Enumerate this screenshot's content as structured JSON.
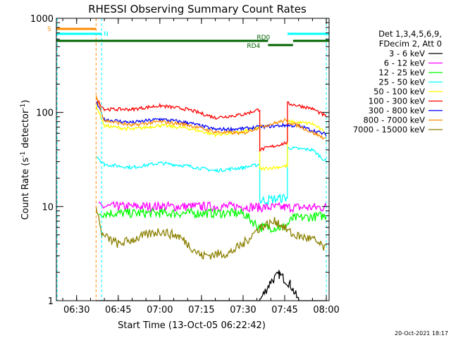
{
  "chart_data": {
    "type": "line",
    "title": "RHESSI Observing Summary Count Rates",
    "xlabel": "Start Time (13-Oct-05 06:22:42)",
    "ylabel_main": "Count Rate (s",
    "ylabel_exp1": "-1",
    "ylabel_mid": " detector",
    "ylabel_exp2": "-1",
    "ylabel_end": ")",
    "x_range": [
      "06:22:42",
      "08:01:00"
    ],
    "y_scale": "log",
    "ylim": [
      1,
      1000
    ],
    "x_ticks": [
      "06:30",
      "06:45",
      "07:00",
      "07:15",
      "07:30",
      "07:45",
      "08:00"
    ],
    "y_ticks": [
      "1",
      "10",
      "100",
      "1000"
    ],
    "legend_header": [
      "Det 1,3,4,5,6,9,",
      "FDecim 2, Att 0"
    ],
    "legend_position": "right",
    "footer": "20-Oct-2021 18:17",
    "series": [
      {
        "name": "3 - 6 keV",
        "color": "#000000",
        "points": [
          [
            "06:37",
            1.0
          ],
          [
            "06:45",
            1.0
          ],
          [
            "07:00",
            1.0
          ],
          [
            "07:15",
            1.0
          ],
          [
            "07:30",
            1.0
          ],
          [
            "07:36",
            1.0
          ],
          [
            "07:40",
            1.6
          ],
          [
            "07:43",
            1.9
          ],
          [
            "07:47",
            1.5
          ],
          [
            "07:50",
            1.0
          ],
          [
            "08:00",
            1.0
          ]
        ]
      },
      {
        "name": "6 - 12 keV",
        "color": "#ff00ff",
        "points": [
          [
            "06:38",
            10.0
          ],
          [
            "06:45",
            10.0
          ],
          [
            "07:00",
            10.0
          ],
          [
            "07:15",
            10.0
          ],
          [
            "07:30",
            10.0
          ],
          [
            "07:36",
            9.8
          ],
          [
            "07:45",
            9.8
          ],
          [
            "08:00",
            9.8
          ]
        ]
      },
      {
        "name": "12 - 25 keV",
        "color": "#00ff00",
        "points": [
          [
            "06:38",
            8.5
          ],
          [
            "06:45",
            8.5
          ],
          [
            "07:00",
            8.5
          ],
          [
            "07:15",
            8.5
          ],
          [
            "07:30",
            8.5
          ],
          [
            "07:36",
            6.0
          ],
          [
            "07:45",
            6.0
          ],
          [
            "07:48",
            7.5
          ],
          [
            "08:00",
            8.0
          ]
        ]
      },
      {
        "name": "25 - 50 keV",
        "color": "#00ffff",
        "points": [
          [
            "06:37",
            35.0
          ],
          [
            "06:40",
            28.0
          ],
          [
            "06:50",
            26.0
          ],
          [
            "07:00",
            29.0
          ],
          [
            "07:10",
            27.0
          ],
          [
            "07:20",
            24.0
          ],
          [
            "07:30",
            26.0
          ],
          [
            "07:36",
            28.0
          ],
          [
            "07:36",
            11.5
          ],
          [
            "07:46",
            12.5
          ],
          [
            "07:46",
            42.0
          ],
          [
            "07:55",
            40.0
          ],
          [
            "08:00",
            30.0
          ]
        ]
      },
      {
        "name": "50 - 100 keV",
        "color": "#ffff00",
        "points": [
          [
            "06:37",
            120.0
          ],
          [
            "06:40",
            72.0
          ],
          [
            "06:50",
            66.0
          ],
          [
            "07:00",
            73.0
          ],
          [
            "07:10",
            68.0
          ],
          [
            "07:20",
            58.0
          ],
          [
            "07:30",
            62.0
          ],
          [
            "07:36",
            70.0
          ],
          [
            "07:36",
            25.0
          ],
          [
            "07:46",
            27.0
          ],
          [
            "07:46",
            80.0
          ],
          [
            "07:55",
            76.0
          ],
          [
            "08:00",
            60.0
          ]
        ]
      },
      {
        "name": "100 - 300 keV",
        "color": "#ff0000",
        "points": [
          [
            "06:37",
            140.0
          ],
          [
            "06:40",
            108.0
          ],
          [
            "06:50",
            108.0
          ],
          [
            "07:00",
            118.0
          ],
          [
            "07:10",
            108.0
          ],
          [
            "07:20",
            88.0
          ],
          [
            "07:30",
            95.0
          ],
          [
            "07:36",
            108.0
          ],
          [
            "07:36",
            40.0
          ],
          [
            "07:46",
            48.0
          ],
          [
            "07:46",
            125.0
          ],
          [
            "07:55",
            110.0
          ],
          [
            "08:00",
            90.0
          ]
        ]
      },
      {
        "name": "300 - 800 keV",
        "color": "#0000ff",
        "points": [
          [
            "06:37",
            130.0
          ],
          [
            "06:40",
            84.0
          ],
          [
            "06:50",
            78.0
          ],
          [
            "07:00",
            85.0
          ],
          [
            "07:10",
            78.0
          ],
          [
            "07:20",
            66.0
          ],
          [
            "07:30",
            67.0
          ],
          [
            "07:36",
            70.0
          ],
          [
            "07:45",
            73.0
          ],
          [
            "07:50",
            72.0
          ],
          [
            "08:00",
            58.0
          ]
        ]
      },
      {
        "name": "800 - 7000 keV",
        "color": "#ff8c00",
        "points": [
          [
            "06:37",
            150.0
          ],
          [
            "06:40",
            82.0
          ],
          [
            "06:50",
            73.0
          ],
          [
            "07:00",
            80.0
          ],
          [
            "07:10",
            74.0
          ],
          [
            "07:20",
            62.0
          ],
          [
            "07:30",
            60.0
          ],
          [
            "07:36",
            70.0
          ],
          [
            "07:45",
            82.0
          ],
          [
            "07:50",
            72.0
          ],
          [
            "08:00",
            52.0
          ]
        ]
      },
      {
        "name": "7000 - 15000 keV",
        "color": "#8b8000",
        "points": [
          [
            "06:37",
            11.0
          ],
          [
            "06:39",
            5.0
          ],
          [
            "06:45",
            4.0
          ],
          [
            "07:00",
            5.5
          ],
          [
            "07:07",
            4.8
          ],
          [
            "07:15",
            3.0
          ],
          [
            "07:25",
            3.2
          ],
          [
            "07:30",
            4.0
          ],
          [
            "07:36",
            6.0
          ],
          [
            "07:42",
            7.0
          ],
          [
            "07:48",
            5.0
          ],
          [
            "07:55",
            4.5
          ],
          [
            "08:00",
            3.5
          ]
        ]
      }
    ],
    "state_bars": [
      {
        "label": "S",
        "color": "#ff8c00",
        "from": "06:22:42",
        "to": "06:37"
      },
      {
        "label": "N",
        "color": "#00ffff",
        "from": "06:22:42",
        "to": "06:39"
      },
      {
        "label": "N",
        "color": "#00ffff",
        "from": "07:46",
        "to": "08:01"
      },
      {
        "label": "RD0",
        "color": "#006400",
        "from": "06:22:42",
        "to": "07:39"
      },
      {
        "label": "RD0",
        "color": "#006400",
        "from": "07:48",
        "to": "08:01"
      },
      {
        "label": "RD4",
        "color": "#006400",
        "from": "07:39",
        "to": "07:48"
      }
    ],
    "markers": [
      {
        "color": "#ff8c00",
        "at": "06:37"
      },
      {
        "color": "#00ffff",
        "at": "06:23"
      },
      {
        "color": "#00ffff",
        "at": "06:39"
      },
      {
        "color": "#00ffff",
        "at": "08:00"
      }
    ]
  }
}
